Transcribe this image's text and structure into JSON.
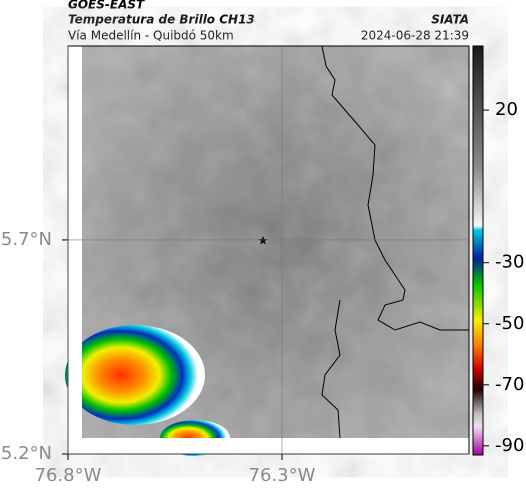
{
  "header": {
    "source": "GOES-EAST",
    "title": "Temperatura de Brillo CH13",
    "agency": "SIATA",
    "subtitle": "Vía Medellín - Quibdó 50km",
    "datetime": "2024-06-28 21:39"
  },
  "map": {
    "ylim": [
      5.2,
      6.153
    ],
    "xlim": [
      -76.8,
      -75.863
    ],
    "yticks": [
      {
        "value": 5.7,
        "label": "5.7°N"
      },
      {
        "value": 5.2,
        "label": "5.2°N"
      }
    ],
    "xticks": [
      {
        "value": -76.8,
        "label": "76.8°W"
      },
      {
        "value": -76.3,
        "label": "76.3°W"
      }
    ],
    "grid": true
  },
  "colorbar": {
    "ylim": [
      -93,
      41
    ],
    "yticks": [
      20,
      -30,
      -50,
      -70,
      -90
    ]
  }
}
